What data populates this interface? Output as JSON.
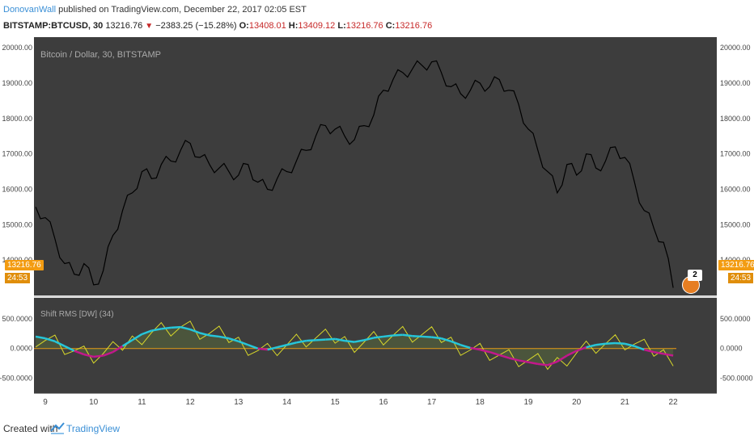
{
  "header": {
    "author": "DonovanWall",
    "published_text": " published on TradingView.com, December 22, 2017 02:05 EST",
    "symbol": "BITSTAMP:BTCUSD, 30",
    "last": "13216.76",
    "change": "−2383.25 (−15.28%)",
    "o_label": "O:",
    "o_value": "13408.01",
    "h_label": "H:",
    "h_value": "13409.12",
    "l_label": "L:",
    "l_value": "13216.76",
    "c_label": "C:",
    "c_value": "13216.76"
  },
  "price_pane": {
    "legend": "Bitcoin / Dollar, 30, BITSTAMP",
    "y_ticks": [
      "20000.00",
      "19000.00",
      "18000.00",
      "17000.00",
      "16000.00",
      "15000.00",
      "14000.00"
    ],
    "last_price_label": "13216.76",
    "countdown_label": "24:53",
    "event_count": "2"
  },
  "indicator_pane": {
    "legend": "Shift RMS [DW] (34)",
    "left_ticks": [
      "500.0000",
      "0.0000",
      "-500.0000"
    ],
    "right_ticks": [
      "500.0000",
      "0.0000",
      "-500.0000"
    ]
  },
  "x_axis": {
    "labels": [
      "9",
      "10",
      "11",
      "12",
      "13",
      "14",
      "15",
      "16",
      "17",
      "18",
      "19",
      "20",
      "21",
      "22"
    ]
  },
  "footer": {
    "created_with": "Created with",
    "brand": "TradingView"
  },
  "colors": {
    "pane_bg": "#3d3d3d",
    "price_line": "#000000",
    "rms_positive": "#26c6da",
    "rms_negative": "#c2188b",
    "osc": "#d8d82a",
    "zero_line": "#f39c12",
    "badge": "#f39c12",
    "author": "#3a8fd6"
  },
  "chart_data": {
    "type": "line",
    "x_label_days": [
      "9",
      "10",
      "11",
      "12",
      "13",
      "14",
      "15",
      "16",
      "17",
      "18",
      "19",
      "20",
      "21",
      "22"
    ],
    "price_series": {
      "x": [
        8.8,
        9.0,
        9.2,
        9.4,
        9.6,
        9.8,
        10.0,
        10.2,
        10.4,
        10.6,
        10.8,
        11.0,
        11.2,
        11.4,
        11.6,
        11.8,
        12.0,
        12.2,
        12.4,
        12.6,
        12.8,
        13.0,
        13.2,
        13.4,
        13.6,
        13.8,
        14.0,
        14.2,
        14.4,
        14.6,
        14.8,
        15.0,
        15.2,
        15.4,
        15.6,
        15.8,
        16.0,
        16.2,
        16.4,
        16.6,
        16.8,
        17.0,
        17.2,
        17.4,
        17.6,
        17.8,
        18.0,
        18.2,
        18.4,
        18.6,
        18.8,
        19.0,
        19.2,
        19.4,
        19.6,
        19.8,
        20.0,
        20.2,
        20.4,
        20.6,
        20.8,
        21.0,
        21.2,
        21.4,
        21.6,
        21.8,
        22.0
      ],
      "y": [
        15500,
        15200,
        14600,
        13900,
        13600,
        13900,
        13300,
        13700,
        14700,
        15400,
        15900,
        16500,
        16300,
        16700,
        16800,
        17100,
        17300,
        16900,
        16700,
        16600,
        16500,
        16400,
        16700,
        16200,
        16000,
        16300,
        16500,
        16800,
        17100,
        17500,
        17800,
        17700,
        17500,
        17400,
        17800,
        18100,
        18800,
        19100,
        19300,
        19400,
        19500,
        19600,
        19300,
        18900,
        18700,
        18800,
        19000,
        18900,
        19100,
        18800,
        18400,
        17700,
        17100,
        16500,
        15900,
        16700,
        16400,
        17000,
        16600,
        16800,
        17200,
        16900,
        16200,
        15400,
        14900,
        14500,
        13216.76
      ]
    },
    "indicator_series": [
      {
        "name": "Shift RMS [DW] (34)",
        "x": [
          8.8,
          9.0,
          9.2,
          9.4,
          9.6,
          9.8,
          10.0,
          10.2,
          10.4,
          10.6,
          10.8,
          11.0,
          11.2,
          11.4,
          11.6,
          11.8,
          12.0,
          12.2,
          12.4,
          12.6,
          12.8,
          13.0,
          13.2,
          13.4,
          13.6,
          13.8,
          14.0,
          14.2,
          14.4,
          14.6,
          14.8,
          15.0,
          15.2,
          15.4,
          15.6,
          15.8,
          16.0,
          16.2,
          16.4,
          16.6,
          16.8,
          17.0,
          17.2,
          17.4,
          17.6,
          17.8,
          18.0,
          18.2,
          18.4,
          18.6,
          18.8,
          19.0,
          19.2,
          19.4,
          19.6,
          19.8,
          20.0,
          20.2,
          20.4,
          20.6,
          20.8,
          21.0,
          21.2,
          21.4,
          21.6,
          21.8,
          22.0
        ],
        "y": [
          200,
          170,
          120,
          40,
          -40,
          -100,
          -140,
          -120,
          -60,
          40,
          140,
          240,
          300,
          330,
          350,
          360,
          320,
          260,
          220,
          200,
          170,
          120,
          60,
          0,
          -20,
          20,
          60,
          100,
          130,
          140,
          150,
          160,
          130,
          110,
          140,
          180,
          200,
          220,
          230,
          210,
          200,
          190,
          170,
          120,
          60,
          10,
          -20,
          -60,
          -110,
          -160,
          -200,
          -230,
          -260,
          -280,
          -220,
          -120,
          -40,
          20,
          60,
          80,
          90,
          80,
          40,
          -20,
          -60,
          -90,
          -120
        ]
      }
    ],
    "ylim_price": [
      13000,
      20300
    ],
    "ylim_indicator": [
      -750,
      850
    ],
    "zero_line": 0
  }
}
